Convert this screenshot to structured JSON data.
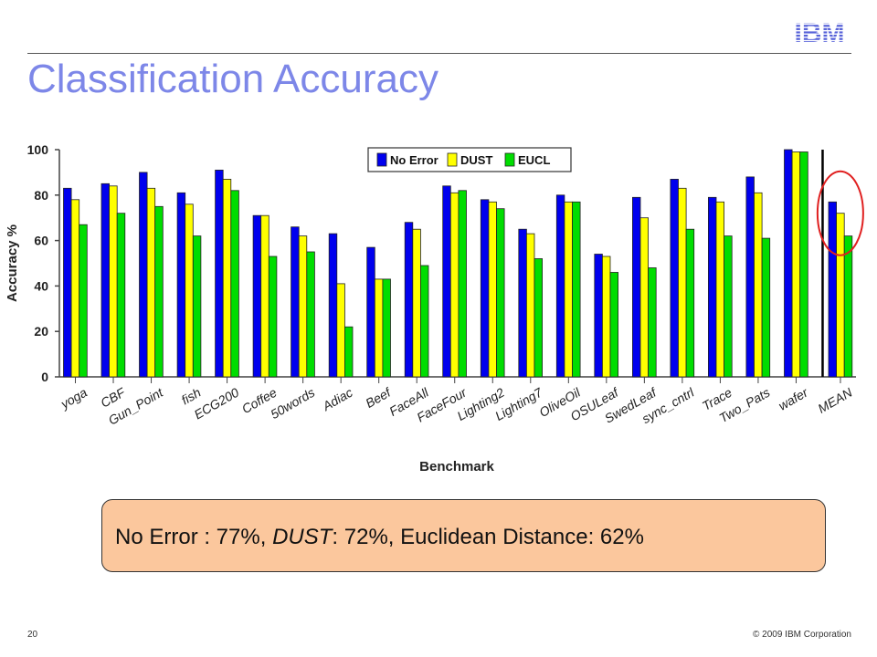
{
  "logo_text": "IBM",
  "title": "Classification Accuracy",
  "summary": {
    "part1": "No Error : 77%, ",
    "part2": "DUST",
    "part3": ": 72%, Euclidean Distance: 62%"
  },
  "footer": {
    "page": "20",
    "copyright": "© 2009 IBM Corporation"
  },
  "colors": {
    "no_error": "#0000ee",
    "dust": "#ffff00",
    "eucl": "#00dd00",
    "title": "#7d87e8",
    "callout": "#fbc79d",
    "highlight": "#e02020"
  },
  "chart_data": {
    "type": "bar",
    "xlabel": "Benchmark",
    "ylabel": "Accuracy %",
    "ylim": [
      0,
      100
    ],
    "yticks": [
      0,
      20,
      40,
      60,
      80,
      100
    ],
    "legend_position": "top-center",
    "categories": [
      "yoga",
      "CBF",
      "Gun_Point",
      "fish",
      "ECG200",
      "Coffee",
      "50words",
      "Adiac",
      "Beef",
      "FaceAll",
      "FaceFour",
      "Lighting2",
      "Lighting7",
      "OliveOil",
      "OSULeaf",
      "SwedLeaf",
      "sync_cntrl",
      "Trace",
      "Two_Pats",
      "wafer",
      "MEAN"
    ],
    "series": [
      {
        "name": "No Error",
        "values": [
          83,
          85,
          90,
          81,
          91,
          71,
          66,
          63,
          57,
          68,
          84,
          78,
          65,
          80,
          54,
          79,
          87,
          79,
          88,
          100,
          77
        ]
      },
      {
        "name": "DUST",
        "values": [
          78,
          84,
          83,
          76,
          87,
          71,
          62,
          41,
          43,
          65,
          81,
          77,
          63,
          77,
          53,
          70,
          83,
          77,
          81,
          99,
          72
        ]
      },
      {
        "name": "EUCL",
        "values": [
          67,
          72,
          75,
          62,
          82,
          53,
          55,
          22,
          43,
          49,
          82,
          74,
          52,
          77,
          46,
          48,
          65,
          62,
          61,
          99,
          62
        ]
      }
    ],
    "highlight_category": "MEAN"
  }
}
